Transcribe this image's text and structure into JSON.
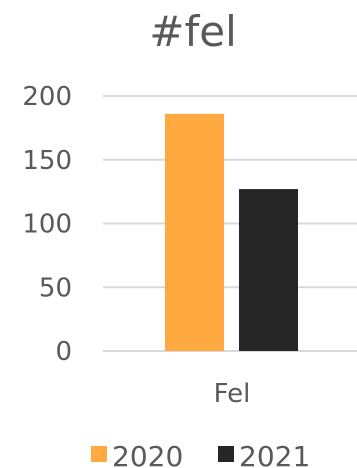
{
  "chart_data": {
    "type": "bar",
    "title": "#fel",
    "categories": [
      "Fel"
    ],
    "series": [
      {
        "name": "2020",
        "values": [
          186
        ],
        "color": "#FFA940"
      },
      {
        "name": "2021",
        "values": [
          127
        ],
        "color": "#262626"
      }
    ],
    "ylim": [
      0,
      200
    ],
    "yticks": [
      "0",
      "50",
      "100",
      "150",
      "200"
    ],
    "grid": true,
    "legend": "bottom"
  }
}
